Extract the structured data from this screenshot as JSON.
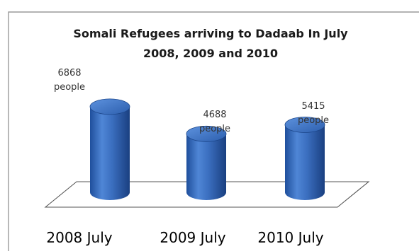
{
  "chart_data": {
    "type": "bar",
    "title": "Somali Refugees arriving to Dadaab In July",
    "subtitle": "2008, 2009 and 2010",
    "categories": [
      "2008 July",
      "2009 July",
      "2010 July"
    ],
    "values": [
      6868,
      4688,
      5415
    ],
    "value_labels": [
      "6868",
      "4688",
      "5415"
    ],
    "unit_label": "people",
    "xlabel": "",
    "ylabel": "",
    "ylim": [
      0,
      8000
    ],
    "grid": false,
    "legend": "none",
    "style": "3d-cylinder",
    "colors": {
      "bar": "#3c70c2",
      "bar_dark": "#1c468a",
      "bar_top": "#4d82d2",
      "frame": "#9a9a9a"
    }
  }
}
